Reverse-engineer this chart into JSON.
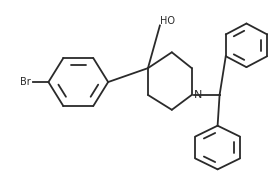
{
  "bg_color": "#ffffff",
  "line_color": "#2a2a2a",
  "line_width": 1.3,
  "text_color": "#2a2a2a",
  "font_size": 7.0,
  "fig_width": 2.75,
  "fig_height": 1.74,
  "dpi": 100,
  "br_label": "Br",
  "ho_label": "HO",
  "n_label": "N"
}
